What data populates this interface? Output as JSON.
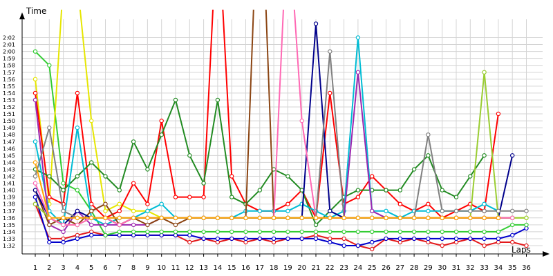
{
  "chart_data": {
    "type": "line",
    "xlabel": "Laps",
    "ylabel": "Time",
    "x": [
      1,
      2,
      3,
      4,
      5,
      6,
      7,
      8,
      9,
      10,
      11,
      12,
      13,
      14,
      15,
      16,
      17,
      18,
      19,
      20,
      21,
      22,
      23,
      24,
      25,
      26,
      27,
      28,
      29,
      30,
      31,
      32,
      33,
      34,
      35,
      36
    ],
    "y_ticks": [
      "1:32",
      "1:33",
      "1:34",
      "1:35",
      "1:36",
      "1:37",
      "1:38",
      "1:39",
      "1:40",
      "1:41",
      "1:42",
      "1:43",
      "1:44",
      "1:45",
      "1:46",
      "1:47",
      "1:48",
      "1:49",
      "1:50",
      "1:51",
      "1:52",
      "1:53",
      "1:54",
      "1:55",
      "1:56",
      "1:57",
      "1:58",
      "1:59",
      "2:00",
      "2:01",
      "2:02"
    ],
    "ylim_seconds": [
      91.5,
      125
    ],
    "grid": true,
    "series": [
      {
        "color": "#e31a1c",
        "values": [
          98,
          93,
          93,
          93.5,
          94,
          93.5,
          93.5,
          93.5,
          93.5,
          93.5,
          93.5,
          92.5,
          93,
          92.5,
          93,
          92.5,
          93,
          92.5,
          93,
          93,
          93.5,
          93,
          93,
          92,
          91.5,
          93,
          92.5,
          93,
          92.5,
          92,
          92.5,
          93,
          92,
          92.5,
          92.5,
          92
        ]
      },
      {
        "color": "#0000cc",
        "values": [
          99,
          92.5,
          92.5,
          93,
          93.5,
          93.5,
          93.5,
          93.5,
          93.5,
          93.5,
          93.5,
          93.5,
          93,
          93,
          93,
          93,
          93,
          93,
          93,
          93,
          93,
          92.5,
          92,
          92,
          92.5,
          93,
          93,
          93,
          93,
          93,
          93,
          93,
          93,
          93,
          93.5,
          94.5
        ]
      },
      {
        "color": "#33cc33",
        "values": [
          120,
          118,
          101,
          100,
          97,
          93.5,
          94,
          94,
          94,
          94,
          94,
          94,
          94,
          94,
          94,
          94,
          94,
          94,
          94,
          94,
          94,
          94,
          94,
          94,
          94,
          94,
          94,
          94,
          94,
          94,
          94,
          94,
          94,
          94,
          95,
          95
        ]
      },
      {
        "color": "#e6e600",
        "values": [
          116,
          98,
          130,
          130,
          110,
          97,
          98,
          97,
          97,
          96,
          96,
          96,
          96,
          96,
          96,
          96,
          96,
          96,
          96,
          96,
          96,
          96,
          96,
          96,
          96,
          96,
          96,
          96,
          96,
          96,
          96,
          96,
          96,
          96,
          96,
          96
        ]
      },
      {
        "color": "#ff0000",
        "values": [
          114,
          99,
          98,
          114,
          98,
          96,
          97,
          101,
          98,
          110,
          99,
          99,
          99,
          140,
          102,
          98,
          97,
          97,
          98,
          100,
          96,
          114,
          98,
          99,
          102,
          100,
          98,
          97,
          98,
          96,
          97,
          98,
          97,
          111,
          null,
          null
        ]
      },
      {
        "color": "#228b22",
        "values": [
          103,
          102,
          100,
          102,
          104,
          102,
          100,
          107,
          103,
          108,
          113,
          105,
          101,
          113,
          99,
          98,
          100,
          103,
          102,
          100,
          95,
          97,
          99,
          100,
          100,
          100,
          100,
          103,
          105,
          100,
          99,
          102,
          105,
          null,
          null,
          null
        ]
      },
      {
        "color": "#00bcd4",
        "values": [
          107,
          97,
          95,
          109,
          96,
          95,
          96,
          96,
          97,
          98,
          96,
          96,
          96,
          96,
          96,
          97,
          97,
          97,
          97,
          98,
          97,
          96,
          97,
          122,
          97,
          97,
          96,
          97,
          97,
          97,
          97,
          97,
          98,
          97,
          null,
          null
        ]
      },
      {
        "color": "#9c27b0",
        "values": [
          113,
          95,
          94,
          97,
          95,
          95,
          95,
          95,
          95,
          96,
          96,
          96,
          96,
          96,
          96,
          96,
          96,
          96,
          96,
          96,
          96,
          96,
          96,
          117,
          97,
          96,
          96,
          96,
          96,
          96,
          96,
          96,
          96,
          96,
          96,
          null
        ]
      },
      {
        "color": "#8b4513",
        "values": [
          100,
          95,
          96,
          95,
          97,
          98,
          95,
          96,
          95,
          96,
          95,
          96,
          96,
          96,
          96,
          96,
          150,
          96,
          96,
          96,
          96,
          96,
          96,
          96,
          96,
          96,
          96,
          96,
          96,
          96,
          96,
          96,
          96,
          96,
          96,
          null
        ]
      },
      {
        "color": "#00008b",
        "values": [
          100,
          96,
          95,
          97,
          96,
          96,
          95,
          96,
          96,
          96,
          96,
          96,
          96,
          96,
          96,
          96,
          96,
          96,
          96,
          96,
          124,
          97,
          96,
          96,
          96,
          96,
          96,
          96,
          96,
          96,
          96,
          96,
          96,
          96,
          105,
          null
        ]
      },
      {
        "color": "#9acd32",
        "values": [
          98,
          96,
          95,
          95,
          96,
          96,
          95,
          96,
          96,
          96,
          96,
          96,
          96,
          96,
          96,
          96,
          96,
          96,
          96,
          96,
          96,
          96,
          96,
          96,
          96,
          96,
          96,
          96,
          96,
          96,
          96,
          96,
          117,
          96,
          96,
          96
        ]
      },
      {
        "color": "#ff69b4",
        "values": [
          101,
          96,
          95,
          95,
          96,
          96,
          95,
          96,
          96,
          96,
          96,
          96,
          96,
          96,
          96,
          96,
          96,
          96,
          140,
          110,
          96,
          96,
          96,
          96,
          96,
          96,
          96,
          96,
          96,
          96,
          96,
          96,
          96,
          96,
          96,
          null
        ]
      },
      {
        "color": "#808080",
        "values": [
          102,
          109,
          97,
          96,
          96,
          96,
          96,
          96,
          96,
          96,
          96,
          96,
          96,
          96,
          96,
          96,
          96,
          96,
          96,
          96,
          96,
          120,
          96,
          96,
          96,
          96,
          96,
          96,
          108,
          97,
          97,
          97,
          97,
          97,
          97,
          97
        ]
      },
      {
        "color": "#ffa500",
        "values": [
          104,
          96,
          96,
          96,
          96,
          96,
          96,
          96,
          96,
          96,
          96,
          96,
          96,
          96,
          96,
          96,
          96,
          96,
          96,
          96,
          96,
          96,
          96,
          96,
          96,
          96,
          96,
          96,
          96,
          96,
          96,
          96,
          96,
          96,
          null,
          null
        ]
      }
    ]
  }
}
